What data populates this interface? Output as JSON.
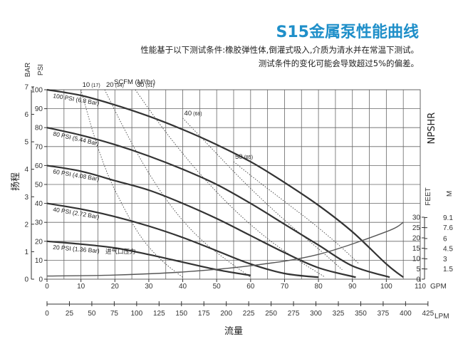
{
  "header": {
    "title": "S15金属泵性能曲线",
    "line1": "性能基于以下测试条件:橡胶弹性体,倒灌式吸入,介质为清水并在常温下测试。",
    "line2": "测试条件的变化可能会导致超过5%的偏差。"
  },
  "colors": {
    "title": "#1f8fc9",
    "curve": "#333333",
    "scfm": "#444444",
    "npsh": "#555555",
    "grid": "#666666"
  },
  "chart_data": {
    "type": "line",
    "title": "S15金属泵性能曲线",
    "xlabel": "流量",
    "ylabel": "扬程",
    "x_unit_gpm": "GPM",
    "x_unit_lpm": "LPM",
    "y_unit_bar": "BAR",
    "y_unit_psi": "PSI",
    "right_label": "NPSHR",
    "right_unit_feet": "FEET",
    "right_unit_m": "M",
    "scfm_unit": "SCFM (M³/hr)",
    "xlim": [
      0,
      110
    ],
    "ylim": [
      0,
      100
    ],
    "grid": true,
    "x_ticks_gpm": [
      "0",
      "10",
      "20",
      "30",
      "40",
      "50",
      "60",
      "70",
      "80",
      "90",
      "100",
      "110"
    ],
    "x_ticks_lpm": [
      "0",
      "25",
      "50",
      "75",
      "100",
      "125",
      "150",
      "175",
      "200",
      "225",
      "250",
      "275",
      "300",
      "325",
      "350",
      "375",
      "400",
      "425"
    ],
    "y_ticks_psi": [
      "0",
      "10",
      "20",
      "30",
      "40",
      "50",
      "60",
      "70",
      "80",
      "90",
      "100"
    ],
    "y_ticks_bar": [
      "0",
      "1",
      "2",
      "3",
      "4",
      "5",
      "6",
      "7"
    ],
    "npsh_feet_ticks": [
      "0",
      "5",
      "10",
      "15",
      "20",
      "25",
      "30"
    ],
    "npsh_m_ticks": [
      "1.5",
      "3",
      "4.5",
      "6",
      "7.6",
      "9.1"
    ],
    "series": [
      {
        "name": "100 PSI (6.8 Bar)",
        "x": [
          0,
          10,
          20,
          30,
          40,
          50,
          60,
          70,
          80,
          90,
          100,
          105
        ],
        "y": [
          100,
          97,
          92,
          86,
          79,
          71,
          62,
          51,
          39,
          25,
          8,
          1
        ]
      },
      {
        "name": "80 PSI (5.44 Bar)",
        "x": [
          0,
          10,
          20,
          30,
          40,
          50,
          60,
          70,
          80,
          90,
          101
        ],
        "y": [
          80,
          76,
          71,
          65,
          58,
          50,
          40,
          29,
          18,
          7,
          1
        ]
      },
      {
        "name": "60 PSI (4.08 Bar)",
        "x": [
          0,
          10,
          20,
          30,
          40,
          50,
          60,
          70,
          80,
          91
        ],
        "y": [
          60,
          57,
          52,
          47,
          40,
          32,
          23,
          14,
          6,
          1
        ]
      },
      {
        "name": "40 PSI (2.72 Bar)",
        "x": [
          0,
          10,
          20,
          30,
          40,
          50,
          60,
          70,
          80
        ],
        "y": [
          40,
          37,
          33,
          28,
          22,
          15,
          8,
          3,
          1
        ]
      },
      {
        "name": "20 PSI (1.36 Bar)",
        "x": [
          0,
          10,
          20,
          30,
          40,
          50,
          60
        ],
        "y": [
          20,
          18.5,
          16.5,
          13,
          9,
          5,
          2
        ]
      }
    ],
    "scfm_lines": [
      {
        "label": "10",
        "sub": "(17)",
        "x": [
          10,
          14,
          18,
          22,
          26,
          30,
          35,
          40
        ],
        "y": [
          100,
          75,
          55,
          40,
          27,
          17,
          8,
          1
        ]
      },
      {
        "label": "20",
        "sub": "(34)",
        "x": [
          17,
          22,
          28,
          34,
          40,
          46,
          53,
          60
        ],
        "y": [
          100,
          82,
          62,
          45,
          31,
          20,
          10,
          1
        ]
      },
      {
        "label": "30",
        "sub": "(51)",
        "x": [
          26,
          34,
          42,
          50,
          58,
          66,
          74,
          82
        ],
        "y": [
          100,
          80,
          62,
          46,
          32,
          20,
          10,
          1
        ]
      },
      {
        "label": "40",
        "sub": "(68)",
        "x": [
          40,
          48,
          56,
          64,
          72,
          80,
          87
        ],
        "y": [
          85,
          70,
          55,
          41,
          28,
          16,
          5
        ]
      },
      {
        "label": "50",
        "sub": "(85)",
        "x": [
          55,
          62,
          70,
          78,
          86,
          92
        ],
        "y": [
          62,
          52,
          41,
          30,
          18,
          8
        ]
      }
    ],
    "npsh_curve": {
      "name": "NPSHR",
      "x": [
        0,
        20,
        40,
        60,
        80,
        100,
        105
      ],
      "y_feet": [
        1.5,
        2,
        3.5,
        6.5,
        12,
        23,
        27.5
      ]
    },
    "annotations": [
      "进气口压力"
    ]
  }
}
